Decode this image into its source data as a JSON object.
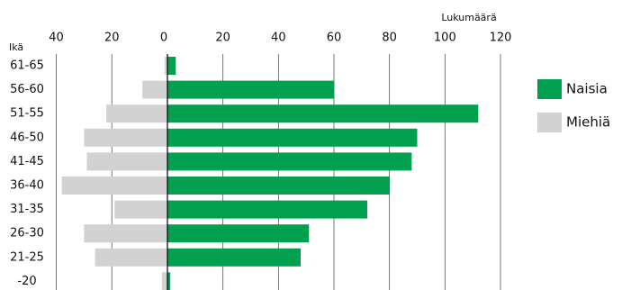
{
  "chart_data": {
    "type": "pyramid",
    "y_label": "Ikä",
    "x_label": "Lukumäärä",
    "categories": [
      "61-65",
      "56-60",
      "51-55",
      "46-50",
      "41-45",
      "36-40",
      "31-35",
      "26-30",
      "21-25",
      "-20"
    ],
    "series": [
      {
        "name": "Naisia",
        "color": "#00a04e",
        "side": "right",
        "values": [
          3,
          60,
          112,
          90,
          88,
          80,
          72,
          51,
          48,
          1
        ]
      },
      {
        "name": "Miehiä",
        "color": "#d2d2d2",
        "side": "left",
        "values": [
          1,
          9,
          22,
          30,
          29,
          38,
          19,
          30,
          26,
          2
        ]
      }
    ],
    "xlim": [
      0,
      120
    ],
    "xticks": [
      0,
      20,
      40,
      60,
      80,
      100,
      120
    ],
    "x2lim": [
      0,
      40
    ],
    "x2ticks": [
      20,
      40
    ],
    "grid": true
  }
}
